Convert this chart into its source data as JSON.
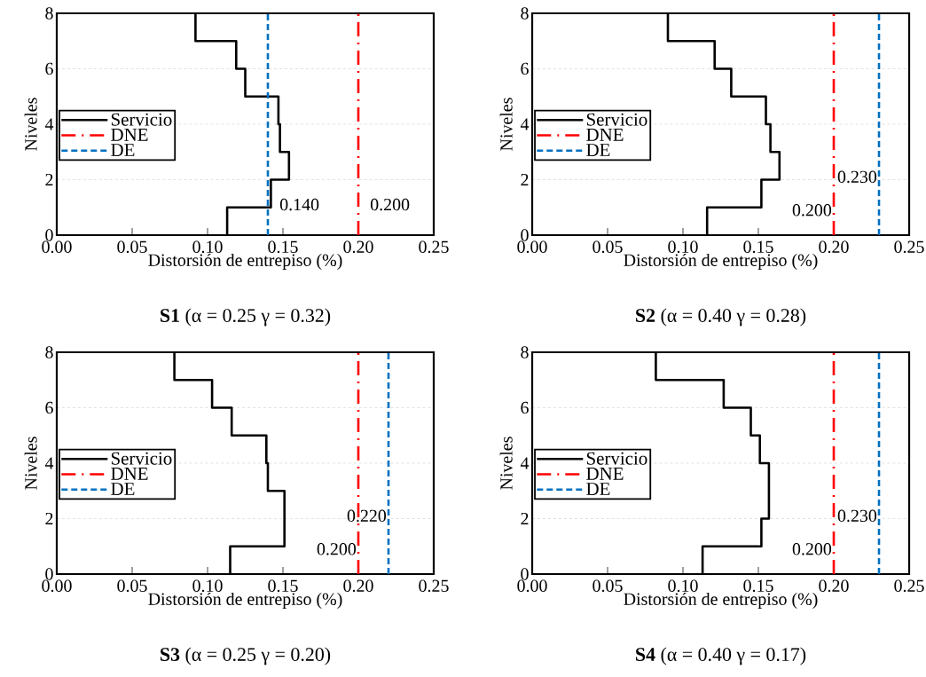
{
  "chart_data": [
    {
      "type": "line",
      "title": "**S1** (α = 0.25 γ = 0.32)",
      "xlabel": "Distorsión de entrepiso (%)",
      "ylabel": "Niveles",
      "xlim": [
        0,
        0.25
      ],
      "ylim": [
        0,
        8
      ],
      "xticks": [
        {
          "value": 0,
          "label": "0.00"
        },
        {
          "value": 0.05,
          "label": "0.05"
        },
        {
          "value": 0.1,
          "label": "0.10"
        },
        {
          "value": 0.15,
          "label": "0.15"
        },
        {
          "value": 0.2,
          "label": "0.20"
        },
        {
          "value": 0.25,
          "label": "0.25"
        }
      ],
      "yticks": [
        0,
        2,
        4,
        6,
        8
      ],
      "grid": "y",
      "legend": "left",
      "series": [
        {
          "name": "Servicio",
          "color": "#000000",
          "line_style": "solid",
          "x": [
            0.113,
            0.113,
            0.142,
            0.142,
            0.154,
            0.154,
            0.148,
            0.148,
            0.147,
            0.147,
            0.125,
            0.125,
            0.119,
            0.119,
            0.092,
            0.092
          ],
          "values": [
            0,
            1,
            1,
            2,
            2,
            3,
            3,
            4,
            4,
            5,
            5,
            6,
            6,
            7,
            7,
            8
          ]
        },
        {
          "name": "DNE",
          "color": "#ff0000",
          "line_style": "dashdot",
          "x": [
            0.2,
            0.2
          ],
          "values": [
            0,
            8
          ]
        },
        {
          "name": "DE",
          "color": "#0070c0",
          "line_style": "dashed",
          "x": [
            0.14,
            0.14
          ],
          "values": [
            0,
            8
          ]
        }
      ],
      "annotations": [
        {
          "text": "0.140",
          "x": 0.14,
          "y": 1.1
        },
        {
          "text": "0.200",
          "x": 0.2,
          "y": 1.1
        }
      ]
    },
    {
      "type": "line",
      "title": "**S2** (α = 0.40 γ = 0.28)",
      "xlabel": "Distorsión de entrepiso (%)",
      "ylabel": "Niveles",
      "xlim": [
        0,
        0.25
      ],
      "ylim": [
        0,
        8
      ],
      "xticks": [
        {
          "value": 0,
          "label": "0.00"
        },
        {
          "value": 0.05,
          "label": "0.05"
        },
        {
          "value": 0.1,
          "label": "0.10"
        },
        {
          "value": 0.15,
          "label": "0.15"
        },
        {
          "value": 0.2,
          "label": "0.20"
        },
        {
          "value": 0.25,
          "label": "0.25"
        }
      ],
      "yticks": [
        0,
        2,
        4,
        6,
        8
      ],
      "grid": "y",
      "legend": "left",
      "series": [
        {
          "name": "Servicio",
          "color": "#000000",
          "line_style": "solid",
          "x": [
            0.116,
            0.116,
            0.152,
            0.152,
            0.164,
            0.164,
            0.158,
            0.158,
            0.155,
            0.155,
            0.132,
            0.132,
            0.121,
            0.121,
            0.09,
            0.09
          ],
          "values": [
            0,
            1,
            1,
            2,
            2,
            3,
            3,
            4,
            4,
            5,
            5,
            6,
            6,
            7,
            7,
            8
          ]
        },
        {
          "name": "DNE",
          "color": "#ff0000",
          "line_style": "dashdot",
          "x": [
            0.2,
            0.2
          ],
          "values": [
            0,
            8
          ]
        },
        {
          "name": "DE",
          "color": "#0070c0",
          "line_style": "dashed",
          "x": [
            0.23,
            0.23
          ],
          "values": [
            0,
            8
          ]
        }
      ],
      "annotations": [
        {
          "text": "0.230",
          "x": 0.23,
          "y": 2.1
        },
        {
          "text": "0.200",
          "x": 0.2,
          "y": 0.9
        }
      ]
    },
    {
      "type": "line",
      "title": "**S3** (α = 0.25 γ = 0.20)",
      "xlabel": "Distorsión de entrepiso (%)",
      "ylabel": "Niveles",
      "xlim": [
        0,
        0.25
      ],
      "ylim": [
        0,
        8
      ],
      "xticks": [
        {
          "value": 0,
          "label": "0.00"
        },
        {
          "value": 0.05,
          "label": "0.05"
        },
        {
          "value": 0.1,
          "label": "0.10"
        },
        {
          "value": 0.15,
          "label": "0.15"
        },
        {
          "value": 0.2,
          "label": "0.20"
        },
        {
          "value": 0.25,
          "label": "0.25"
        }
      ],
      "yticks": [
        0,
        2,
        4,
        6,
        8
      ],
      "grid": "y",
      "legend": "left",
      "series": [
        {
          "name": "Servicio",
          "color": "#000000",
          "line_style": "solid",
          "x": [
            0.115,
            0.115,
            0.151,
            0.151,
            0.14,
            0.14,
            0.139,
            0.139,
            0.116,
            0.116,
            0.103,
            0.103,
            0.078,
            0.078
          ],
          "values": [
            0,
            1,
            1,
            3,
            3,
            4,
            4,
            5,
            5,
            6,
            6,
            7,
            7,
            8
          ]
        },
        {
          "name": "DNE",
          "color": "#ff0000",
          "line_style": "dashdot",
          "x": [
            0.2,
            0.2
          ],
          "values": [
            0,
            8
          ]
        },
        {
          "name": "DE",
          "color": "#0070c0",
          "line_style": "dashed",
          "x": [
            0.22,
            0.22
          ],
          "values": [
            0,
            8
          ]
        }
      ],
      "annotations": [
        {
          "text": "0.220",
          "x": 0.22,
          "y": 2.1
        },
        {
          "text": "0.200",
          "x": 0.2,
          "y": 0.9
        }
      ]
    },
    {
      "type": "line",
      "title": "**S4** (α = 0.40 γ = 0.17)",
      "xlabel": "Distorsión de entrepiso (%)",
      "ylabel": "Niveles",
      "xlim": [
        0,
        0.25
      ],
      "ylim": [
        0,
        8
      ],
      "xticks": [
        {
          "value": 0,
          "label": "0.00"
        },
        {
          "value": 0.05,
          "label": "0.05"
        },
        {
          "value": 0.1,
          "label": "0.10"
        },
        {
          "value": 0.15,
          "label": "0.15"
        },
        {
          "value": 0.2,
          "label": "0.20"
        },
        {
          "value": 0.25,
          "label": "0.25"
        }
      ],
      "yticks": [
        0,
        2,
        4,
        6,
        8
      ],
      "grid": "y",
      "legend": "left",
      "series": [
        {
          "name": "Servicio",
          "color": "#000000",
          "line_style": "solid",
          "x": [
            0.113,
            0.113,
            0.152,
            0.152,
            0.157,
            0.157,
            0.151,
            0.151,
            0.145,
            0.145,
            0.127,
            0.127,
            0.082,
            0.082
          ],
          "values": [
            0,
            1,
            1,
            2,
            2,
            4,
            4,
            5,
            5,
            6,
            6,
            7,
            7,
            8
          ]
        },
        {
          "name": "DNE",
          "color": "#ff0000",
          "line_style": "dashdot",
          "x": [
            0.2,
            0.2
          ],
          "values": [
            0,
            8
          ]
        },
        {
          "name": "DE",
          "color": "#0070c0",
          "line_style": "dashed",
          "x": [
            0.23,
            0.23
          ],
          "values": [
            0,
            8
          ]
        }
      ],
      "annotations": [
        {
          "text": "0.230",
          "x": 0.23,
          "y": 2.1
        },
        {
          "text": "0.200",
          "x": 0.2,
          "y": 0.9
        }
      ]
    }
  ]
}
